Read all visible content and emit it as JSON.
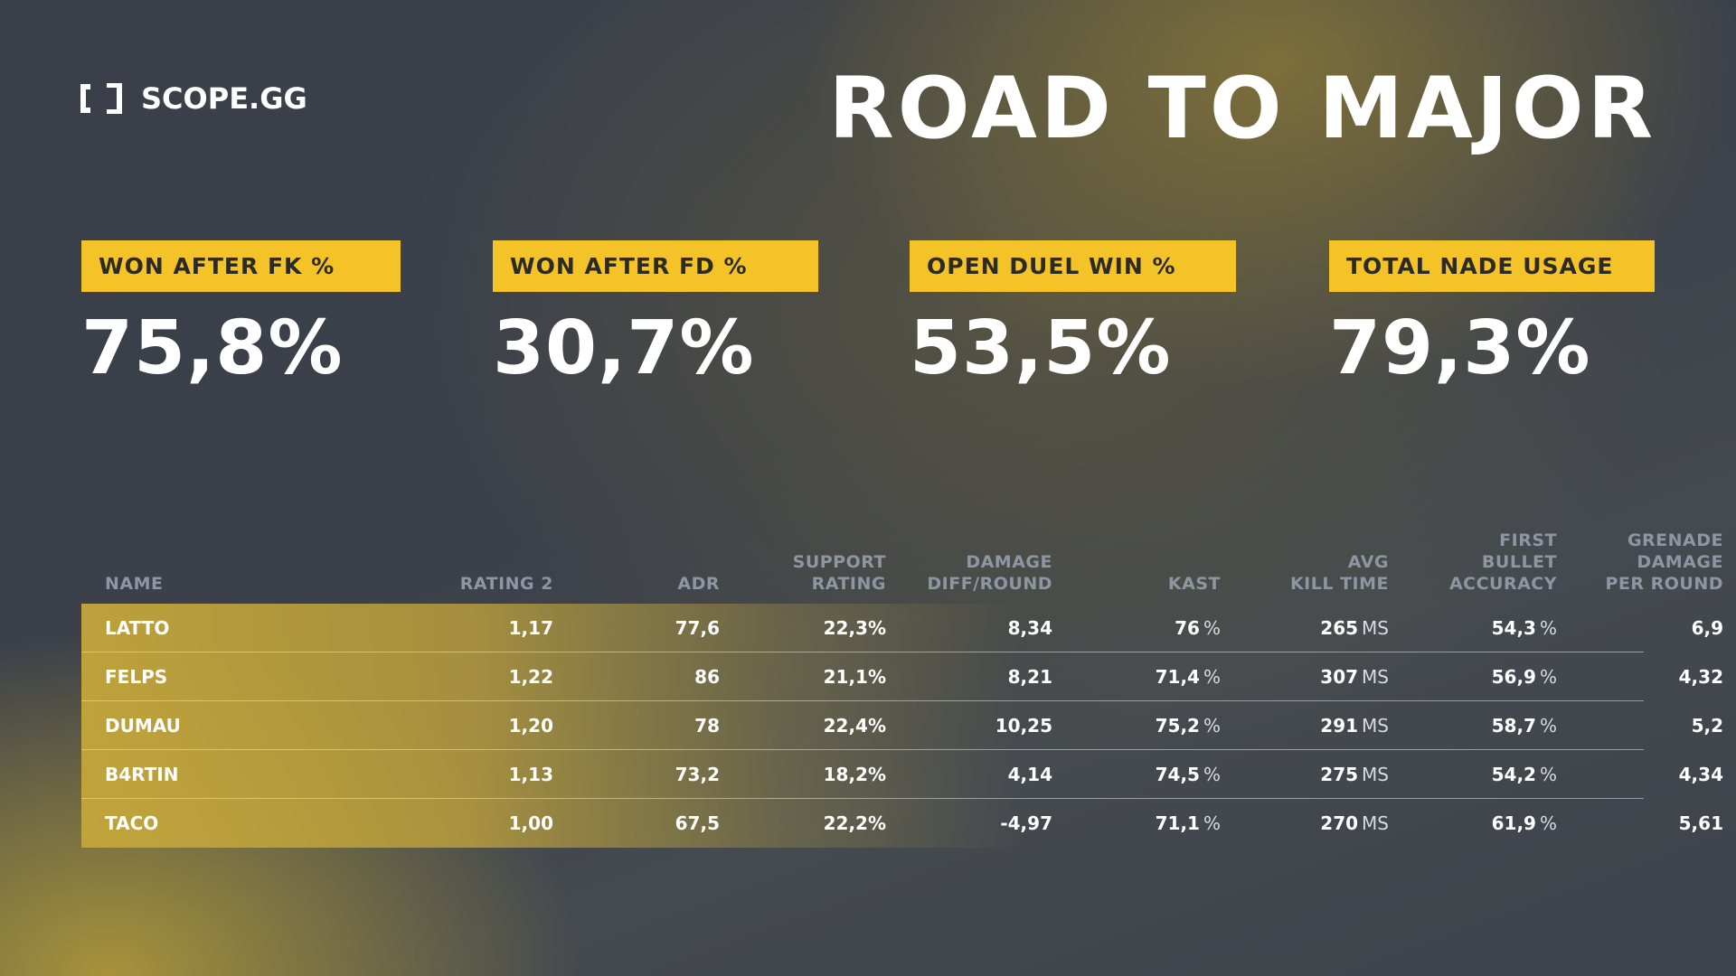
{
  "brand": {
    "name": "SCOPE.GG",
    "logo_icon": "bracket-logo-icon"
  },
  "title": "ROAD TO MAJOR",
  "stats": [
    {
      "label": "WON AFTER FK %",
      "value": "75,8%"
    },
    {
      "label": "WON AFTER FD %",
      "value": "30,7%"
    },
    {
      "label": "OPEN DUEL WIN %",
      "value": "53,5%"
    },
    {
      "label": "TOTAL NADE USAGE",
      "value": "79,3%"
    }
  ],
  "table": {
    "headers": {
      "name": "NAME",
      "rating": "RATING 2",
      "adr": "ADR",
      "support": [
        "SUPPORT",
        "RATING"
      ],
      "damage": [
        "DAMAGE",
        "DIFF/ROUND"
      ],
      "kast": "KAST",
      "killtime": [
        "AVG",
        "KILL TIME"
      ],
      "fba": [
        "FIRST",
        "BULLET",
        "ACCURACY"
      ],
      "gdpr": [
        "GRENADE",
        "DAMAGE",
        "PER ROUND"
      ]
    },
    "units": {
      "percent": "%",
      "ms": "MS"
    },
    "rows": [
      {
        "name": "LATTO",
        "rating": "1,17",
        "adr": "77,6",
        "support": "22,3%",
        "damage": "8,34",
        "kast": "76",
        "killtime": "265",
        "fba": "54,3",
        "gdpr": "6,9"
      },
      {
        "name": "FELPS",
        "rating": "1,22",
        "adr": "86",
        "support": "21,1%",
        "damage": "8,21",
        "kast": "71,4",
        "killtime": "307",
        "fba": "56,9",
        "gdpr": "4,32"
      },
      {
        "name": "DUMAU",
        "rating": "1,20",
        "adr": "78",
        "support": "22,4%",
        "damage": "10,25",
        "kast": "75,2",
        "killtime": "291",
        "fba": "58,7",
        "gdpr": "5,2"
      },
      {
        "name": "B4RTIN",
        "rating": "1,13",
        "adr": "73,2",
        "support": "18,2%",
        "damage": "4,14",
        "kast": "74,5",
        "killtime": "275",
        "fba": "54,2",
        "gdpr": "4,34"
      },
      {
        "name": "TACO",
        "rating": "1,00",
        "adr": "67,5",
        "support": "22,2%",
        "damage": "-4,97",
        "kast": "71,1",
        "killtime": "270",
        "fba": "61,9",
        "gdpr": "5,61"
      }
    ]
  }
}
